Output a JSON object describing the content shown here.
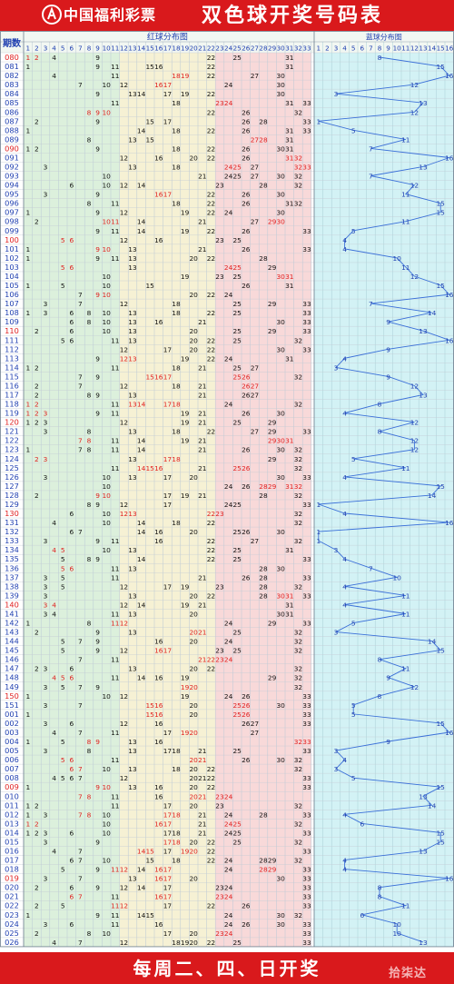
{
  "header": {
    "logo_text": "中国福利彩票",
    "title": "双色球开奖号码表"
  },
  "footer": {
    "text": "每周二、四、日开奖",
    "watermark": "拾柒达"
  },
  "colors": {
    "header_bg": "#d9191c",
    "red_ball": "#e02020",
    "black_ball": "#111111",
    "period_text": "#e02020",
    "blue_line": "#3a6fd8",
    "blue_num": "#1f3fb0",
    "zone1_bg": "#dcf0dc",
    "zone2_bg": "#f6f1d4",
    "zone3_bg": "#f8d9d9",
    "blue_bg": "#d3f2f5"
  },
  "chart_data": {
    "type": "table",
    "column_headers": {
      "period": "期数",
      "red_section": "红球分布图",
      "blue_section": "蓝球分布图"
    },
    "red_columns": [
      1,
      2,
      3,
      4,
      5,
      6,
      7,
      8,
      9,
      10,
      11,
      12,
      13,
      14,
      15,
      16,
      17,
      18,
      19,
      20,
      21,
      22,
      23,
      24,
      25,
      26,
      27,
      28,
      29,
      30,
      31,
      32,
      33
    ],
    "blue_columns": [
      1,
      2,
      3,
      4,
      5,
      6,
      7,
      8,
      9,
      10,
      11,
      12,
      13,
      14,
      15,
      16
    ],
    "rows": [
      {
        "period": "080",
        "red": [
          1,
          2,
          4,
          9,
          22,
          25,
          31
        ],
        "blue": 8
      },
      {
        "period": "081",
        "red": [
          1,
          9,
          11,
          15,
          16,
          22,
          31
        ],
        "blue": 15
      },
      {
        "period": "082",
        "red": [
          4,
          11,
          18,
          19,
          22,
          27,
          30
        ],
        "blue": 16
      },
      {
        "period": "083",
        "red": [
          7,
          10,
          12,
          16,
          17,
          24,
          30
        ],
        "blue": 12
      },
      {
        "period": "084",
        "red": [
          9,
          13,
          14,
          17,
          19,
          22,
          30
        ],
        "blue": 3
      },
      {
        "period": "085",
        "red": [
          11,
          18,
          23,
          24,
          31,
          33
        ],
        "blue": 13
      },
      {
        "period": "086",
        "red": [
          8,
          9,
          10,
          22,
          26,
          32
        ],
        "blue": 12
      },
      {
        "period": "087",
        "red": [
          2,
          9,
          15,
          17,
          26,
          28,
          33
        ],
        "blue": 1
      },
      {
        "period": "088",
        "red": [
          1,
          14,
          18,
          22,
          26,
          31,
          33
        ],
        "blue": 5
      },
      {
        "period": "089",
        "red": [
          8,
          13,
          15,
          27,
          28,
          31
        ],
        "blue": 11
      },
      {
        "period": "090",
        "red": [
          1,
          2,
          9,
          18,
          22,
          26,
          30,
          31
        ],
        "blue": 7
      },
      {
        "period": "091",
        "red": [
          12,
          16,
          20,
          22,
          26,
          31,
          32
        ],
        "blue": 16
      },
      {
        "period": "092",
        "red": [
          3,
          13,
          18,
          24,
          25,
          27,
          32,
          33
        ],
        "blue": 13
      },
      {
        "period": "093",
        "red": [
          10,
          21,
          24,
          25,
          27,
          30,
          32
        ],
        "blue": 7
      },
      {
        "period": "094",
        "red": [
          6,
          10,
          12,
          14,
          23,
          28,
          32
        ],
        "blue": 12
      },
      {
        "period": "095",
        "red": [
          3,
          9,
          16,
          17,
          22,
          26,
          30
        ],
        "blue": 11
      },
      {
        "period": "096",
        "red": [
          8,
          11,
          18,
          22,
          26,
          31,
          32
        ],
        "blue": 15
      },
      {
        "period": "097",
        "red": [
          1,
          9,
          12,
          19,
          22,
          24,
          30
        ],
        "blue": 15
      },
      {
        "period": "098",
        "red": [
          2,
          10,
          11,
          14,
          21,
          27,
          29,
          30
        ],
        "blue": 11
      },
      {
        "period": "099",
        "red": [
          9,
          11,
          14,
          19,
          22,
          26,
          33
        ],
        "blue": 5
      },
      {
        "period": "100",
        "red": [
          5,
          6,
          12,
          16,
          23,
          25
        ],
        "blue": 4
      },
      {
        "period": "101",
        "red": [
          1,
          9,
          10,
          13,
          21,
          26,
          33
        ],
        "blue": 4
      },
      {
        "period": "102",
        "red": [
          1,
          9,
          11,
          13,
          20,
          22,
          28
        ],
        "blue": 10
      },
      {
        "period": "103",
        "red": [
          5,
          6,
          13,
          24,
          25,
          29
        ],
        "blue": 11
      },
      {
        "period": "104",
        "red": [
          10,
          19,
          23,
          25,
          30,
          31
        ],
        "blue": 12
      },
      {
        "period": "105",
        "red": [
          1,
          5,
          10,
          15,
          26,
          31
        ],
        "blue": 15
      },
      {
        "period": "106",
        "red": [
          7,
          9,
          10,
          20,
          22,
          24
        ],
        "blue": 16
      },
      {
        "period": "107",
        "red": [
          3,
          7,
          12,
          18,
          25,
          29,
          33
        ],
        "blue": 7
      },
      {
        "period": "108",
        "red": [
          1,
          3,
          6,
          8,
          10,
          13,
          18,
          22,
          25,
          33
        ],
        "blue": 14
      },
      {
        "period": "109",
        "red": [
          6,
          8,
          10,
          13,
          16,
          21,
          30,
          33
        ],
        "blue": 9
      },
      {
        "period": "110",
        "red": [
          2,
          6,
          10,
          13,
          20,
          25,
          29,
          33
        ],
        "blue": 13
      },
      {
        "period": "111",
        "red": [
          5,
          6,
          11,
          13,
          20,
          22,
          25,
          32
        ],
        "blue": 16
      },
      {
        "period": "112",
        "red": [
          12,
          17,
          20,
          22,
          30,
          33
        ],
        "blue": 9
      },
      {
        "period": "113",
        "red": [
          9,
          12,
          13,
          19,
          22,
          24,
          31
        ],
        "blue": 4
      },
      {
        "period": "114",
        "red": [
          1,
          2,
          11,
          18,
          21,
          25,
          27
        ],
        "blue": 3
      },
      {
        "period": "115",
        "red": [
          7,
          9,
          15,
          16,
          17,
          25,
          26,
          32
        ],
        "blue": 9
      },
      {
        "period": "116",
        "red": [
          2,
          7,
          12,
          18,
          21,
          26,
          27
        ],
        "blue": 12
      },
      {
        "period": "117",
        "red": [
          2,
          8,
          9,
          13,
          21,
          26,
          27
        ],
        "blue": 13
      },
      {
        "period": "118",
        "red": [
          1,
          2,
          11,
          13,
          14,
          17,
          18,
          24,
          32
        ],
        "blue": 8
      },
      {
        "period": "119",
        "red": [
          1,
          2,
          3,
          9,
          11,
          19,
          21,
          26,
          30
        ],
        "blue": 4
      },
      {
        "period": "120",
        "red": [
          1,
          2,
          3,
          12,
          19,
          21,
          25,
          29
        ],
        "blue": 12
      },
      {
        "period": "121",
        "red": [
          3,
          8,
          13,
          18,
          22,
          27,
          29,
          33
        ],
        "blue": 8
      },
      {
        "period": "122",
        "red": [
          7,
          8,
          11,
          14,
          19,
          21,
          29,
          30,
          31
        ],
        "blue": 12
      },
      {
        "period": "123",
        "red": [
          1,
          7,
          8,
          11,
          14,
          21,
          26,
          30,
          32
        ],
        "blue": 12
      },
      {
        "period": "124",
        "red": [
          2,
          3,
          13,
          17,
          18,
          29,
          32
        ],
        "blue": 5
      },
      {
        "period": "125",
        "red": [
          11,
          14,
          15,
          16,
          21,
          25,
          26,
          32
        ],
        "blue": 11
      },
      {
        "period": "126",
        "red": [
          3,
          10,
          13,
          17,
          20,
          30,
          33
        ],
        "blue": 4
      },
      {
        "period": "127",
        "red": [
          10,
          24,
          26,
          28,
          29,
          31,
          32
        ],
        "blue": 15
      },
      {
        "period": "128",
        "red": [
          2,
          9,
          10,
          17,
          19,
          21,
          28,
          32
        ],
        "blue": 14
      },
      {
        "period": "129",
        "red": [
          8,
          9,
          12,
          17,
          24,
          25,
          33
        ],
        "blue": 1
      },
      {
        "period": "130",
        "red": [
          6,
          10,
          12,
          13,
          22,
          23,
          32
        ],
        "blue": 4
      },
      {
        "period": "131",
        "red": [
          4,
          10,
          14,
          18,
          22,
          32
        ],
        "blue": 16
      },
      {
        "period": "132",
        "red": [
          6,
          7,
          14,
          16,
          20,
          25,
          26,
          30
        ],
        "blue": 1
      },
      {
        "period": "133",
        "red": [
          3,
          9,
          11,
          16,
          22,
          27,
          32
        ],
        "blue": 1
      },
      {
        "period": "134",
        "red": [
          4,
          5,
          10,
          13,
          22,
          25,
          31
        ],
        "blue": 3
      },
      {
        "period": "135",
        "red": [
          5,
          8,
          9,
          14,
          22,
          25,
          33
        ],
        "blue": 4
      },
      {
        "period": "136",
        "red": [
          5,
          6,
          11,
          13,
          28,
          30
        ],
        "blue": 7
      },
      {
        "period": "137",
        "red": [
          3,
          5,
          11,
          21,
          26,
          28,
          33
        ],
        "blue": 10
      },
      {
        "period": "138",
        "red": [
          3,
          5,
          12,
          17,
          19,
          23,
          28,
          32
        ],
        "blue": 4
      },
      {
        "period": "139",
        "red": [
          3,
          13,
          20,
          22,
          28,
          30,
          31,
          33
        ],
        "blue": 11
      },
      {
        "period": "140",
        "red": [
          3,
          4,
          12,
          14,
          19,
          21,
          31
        ],
        "blue": 4
      },
      {
        "period": "141",
        "red": [
          3,
          4,
          11,
          13,
          20,
          30,
          31
        ],
        "blue": 11
      },
      {
        "period": "142",
        "red": [
          1,
          8,
          11,
          12,
          24,
          29,
          33
        ],
        "blue": 5
      },
      {
        "period": "143",
        "red": [
          2,
          9,
          13,
          20,
          21,
          25,
          32
        ],
        "blue": 3
      },
      {
        "period": "144",
        "red": [
          5,
          7,
          9,
          16,
          20,
          24,
          32
        ],
        "blue": 14
      },
      {
        "period": "145",
        "red": [
          5,
          9,
          12,
          16,
          17,
          23,
          25,
          32
        ],
        "blue": 15
      },
      {
        "period": "146",
        "red": [
          7,
          11,
          21,
          22,
          23,
          24
        ],
        "blue": 8
      },
      {
        "period": "147",
        "red": [
          2,
          3,
          6,
          13,
          20,
          22,
          32
        ],
        "blue": 11
      },
      {
        "period": "148",
        "red": [
          4,
          5,
          6,
          11,
          14,
          16,
          19,
          29,
          32
        ],
        "blue": 9
      },
      {
        "period": "149",
        "red": [
          3,
          5,
          7,
          9,
          19,
          20,
          32
        ],
        "blue": 12
      },
      {
        "period": "150",
        "red": [
          1,
          10,
          12,
          19,
          24,
          26,
          33
        ],
        "blue": 8
      },
      {
        "period": "151",
        "red": [
          3,
          7,
          15,
          16,
          20,
          25,
          26,
          30,
          33
        ],
        "blue": 5
      },
      {
        "period": "001",
        "red": [
          1,
          15,
          16,
          20,
          25,
          26,
          33
        ],
        "blue": 5
      },
      {
        "period": "002",
        "red": [
          3,
          6,
          12,
          16,
          26,
          27,
          33
        ],
        "blue": 15
      },
      {
        "period": "003",
        "red": [
          4,
          7,
          11,
          17,
          19,
          20,
          27
        ],
        "blue": 16
      },
      {
        "period": "004",
        "red": [
          1,
          5,
          8,
          9,
          13,
          16,
          32,
          33
        ],
        "blue": 9
      },
      {
        "period": "005",
        "red": [
          3,
          8,
          13,
          17,
          18,
          21,
          25,
          33
        ],
        "blue": 3
      },
      {
        "period": "006",
        "red": [
          5,
          6,
          11,
          20,
          21,
          26,
          30,
          32
        ],
        "blue": 4
      },
      {
        "period": "007",
        "red": [
          6,
          7,
          10,
          13,
          18,
          20,
          22,
          32
        ],
        "blue": 3
      },
      {
        "period": "008",
        "red": [
          4,
          5,
          6,
          7,
          12,
          20,
          21,
          22,
          33
        ],
        "blue": 5
      },
      {
        "period": "009",
        "red": [
          1,
          9,
          10,
          13,
          16,
          20,
          22,
          33
        ],
        "blue": 15
      },
      {
        "period": "010",
        "red": [
          7,
          8,
          11,
          16,
          20,
          21,
          23,
          24
        ],
        "blue": 13
      },
      {
        "period": "011",
        "red": [
          1,
          2,
          11,
          17,
          20,
          23,
          32
        ],
        "blue": 14
      },
      {
        "period": "012",
        "red": [
          1,
          3,
          7,
          8,
          10,
          17,
          18,
          21,
          24,
          28,
          33
        ],
        "blue": 4
      },
      {
        "period": "013",
        "red": [
          1,
          2,
          10,
          16,
          17,
          21,
          24,
          25,
          32
        ],
        "blue": 6
      },
      {
        "period": "014",
        "red": [
          1,
          2,
          3,
          6,
          10,
          17,
          18,
          21,
          24,
          25,
          33
        ],
        "blue": 15
      },
      {
        "period": "015",
        "red": [
          3,
          9,
          17,
          18,
          20,
          22,
          25,
          32
        ],
        "blue": 15
      },
      {
        "period": "016",
        "red": [
          4,
          7,
          14,
          15,
          17,
          19,
          20,
          22,
          33
        ],
        "blue": 13
      },
      {
        "period": "017",
        "red": [
          6,
          7,
          10,
          15,
          18,
          22,
          24,
          28,
          29,
          32
        ],
        "blue": 4
      },
      {
        "period": "018",
        "red": [
          5,
          9,
          11,
          12,
          14,
          16,
          17,
          24,
          28,
          29,
          33
        ],
        "blue": 4
      },
      {
        "period": "019",
        "red": [
          3,
          7,
          13,
          16,
          17,
          20,
          30,
          33
        ],
        "blue": 16
      },
      {
        "period": "020",
        "red": [
          2,
          6,
          9,
          12,
          14,
          17,
          23,
          24,
          33
        ],
        "blue": 8
      },
      {
        "period": "021",
        "red": [
          6,
          7,
          11,
          16,
          17,
          23,
          24,
          33
        ],
        "blue": 8
      },
      {
        "period": "022",
        "red": [
          2,
          5,
          11,
          12,
          17,
          22,
          26,
          33
        ],
        "blue": 11
      },
      {
        "period": "023",
        "red": [
          1,
          9,
          11,
          14,
          15,
          24,
          30,
          32
        ],
        "blue": 6
      },
      {
        "period": "024",
        "red": [
          3,
          6,
          11,
          16,
          24,
          26,
          30,
          33
        ],
        "blue": 10
      },
      {
        "period": "025",
        "red": [
          2,
          8,
          10,
          17,
          20,
          23,
          24,
          33
        ],
        "blue": 10
      },
      {
        "period": "026",
        "red": [
          4,
          7,
          12,
          18,
          19,
          20,
          22,
          25,
          33
        ],
        "blue": 13
      }
    ]
  }
}
